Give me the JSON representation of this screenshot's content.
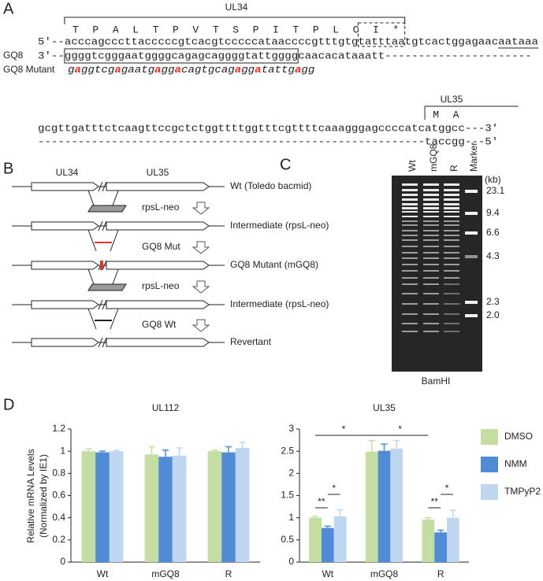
{
  "panel_a": {
    "label": "A",
    "ul34_label": "UL34",
    "ul34_aa": "TPALTPVTSPITPLCI*",
    "top_strand": "5'--acccagcccttacccccgtcacgtcccccataaccccgtttgtgtatttaatgtcactggagaacaataaa",
    "gq8_label": "GQ8",
    "gq8_strand": "3'--ggggtcgggaatggggcagagcaggggtattggggcaacacataaatt----------------------",
    "mutant_label": "GQ8 Mutant",
    "mutant_parts": [
      "g",
      "a",
      "ggtcg",
      "a",
      "gaatg",
      "a",
      "gg",
      "a",
      "cagtgcag",
      "a",
      "gg",
      "a",
      "tattg",
      "a",
      "gg"
    ],
    "mutation_color": "#e8322c",
    "ul35_label": "UL35",
    "ul35_aa": "MA",
    "top_strand_2": "gcgttgatttctcaagttccgctctggttttggtttcgttttcaaagggagccccatcatggcc---3'",
    "bottom_strand_2": "----------------------------------------------------------taccgg---5'"
  },
  "panel_b": {
    "label": "B",
    "gene_labels": [
      "UL34",
      "UL35"
    ],
    "rows": [
      "Wt (Toledo bacmid)",
      "Intermediate (rpsL-neo)",
      "GQ8 Mutant (mGQ8)",
      "Intermediate (rpsL-neo)",
      "Revertant"
    ],
    "steps": [
      "rpsL-neo",
      "GQ8 Mut",
      "rpsL-neo",
      "GQ8 Wt"
    ]
  },
  "panel_c": {
    "label": "C",
    "lanes": [
      "Wt",
      "mGQ8",
      "R",
      "Marker"
    ],
    "unit": "(kb)",
    "marker_sizes": [
      "23.1",
      "9.4",
      "6.6",
      "4.3",
      "2.3",
      "2.0"
    ],
    "enzyme": "BamHI"
  },
  "panel_d": {
    "label": "D",
    "y_label": [
      "Relative mRNA Levels",
      "(Normalized by IE1)"
    ]
  },
  "chart_data": [
    {
      "type": "bar",
      "title": "UL112",
      "categories": [
        "Wt",
        "mGQ8",
        "R"
      ],
      "ylim": [
        0,
        1.2
      ],
      "yticks": [
        0,
        0.2,
        0.4,
        0.6,
        0.8,
        1,
        1.2
      ],
      "series": [
        {
          "name": "DMSO",
          "color": "#c3dea0",
          "values": [
            1.0,
            0.97,
            1.0
          ],
          "errors": [
            0.02,
            0.07,
            0.01
          ]
        },
        {
          "name": "NMM",
          "color": "#4f8bd6",
          "values": [
            0.99,
            0.95,
            0.99
          ],
          "errors": [
            0.01,
            0.06,
            0.05
          ]
        },
        {
          "name": "TMPyP2",
          "color": "#bed6f0",
          "values": [
            1.0,
            0.96,
            1.03
          ],
          "errors": [
            0.01,
            0.07,
            0.05
          ]
        }
      ]
    },
    {
      "type": "bar",
      "title": "UL35",
      "categories": [
        "Wt",
        "mGQ8",
        "R"
      ],
      "ylim": [
        0,
        3
      ],
      "yticks": [
        0,
        0.5,
        1,
        1.5,
        2,
        2.5,
        3
      ],
      "series": [
        {
          "name": "DMSO",
          "color": "#c3dea0",
          "values": [
            1.0,
            2.49,
            0.96
          ],
          "errors": [
            0.03,
            0.25,
            0.04
          ]
        },
        {
          "name": "NMM",
          "color": "#4f8bd6",
          "values": [
            0.77,
            2.51,
            0.67
          ],
          "errors": [
            0.04,
            0.15,
            0.05
          ]
        },
        {
          "name": "TMPyP2",
          "color": "#bed6f0",
          "values": [
            1.03,
            2.56,
            1.0
          ],
          "errors": [
            0.15,
            0.18,
            0.17
          ]
        }
      ],
      "annotations": [
        "*",
        "*",
        "**",
        "*",
        "**",
        "*"
      ],
      "legend": true
    }
  ]
}
